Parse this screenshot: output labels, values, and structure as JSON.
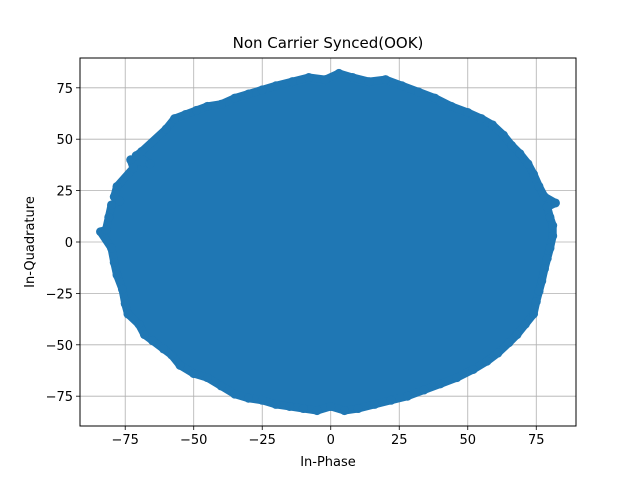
{
  "chart_data": {
    "type": "scatter",
    "title": "Non Carrier Synced(OOK)",
    "xlabel": "In-Phase",
    "ylabel": "In-Quadrature",
    "xlim": [
      -91.5,
      89.5
    ],
    "ylim": [
      -89.5,
      89.5
    ],
    "xticks": [
      -75,
      -50,
      -25,
      0,
      25,
      50,
      75
    ],
    "yticks": [
      -75,
      -50,
      -25,
      0,
      25,
      50,
      75
    ],
    "xtick_labels": [
      "−75",
      "−50",
      "−25",
      "0",
      "25",
      "50",
      "75"
    ],
    "ytick_labels": [
      "−75",
      "−50",
      "−25",
      "0",
      "25",
      "50",
      "75"
    ],
    "grid": true,
    "marker_color": "#1f77b4",
    "series": [
      {
        "points": [
          [
            -84,
            5
          ],
          [
            -82,
            6
          ],
          [
            -81,
            12
          ],
          [
            -80,
            18
          ],
          [
            -79,
            22
          ],
          [
            -78,
            27
          ],
          [
            -77,
            20
          ],
          [
            -80,
            -3
          ],
          [
            -79,
            -10
          ],
          [
            -78,
            -16
          ],
          [
            -76,
            -23
          ],
          [
            -75,
            -30
          ],
          [
            -74,
            -35
          ],
          [
            -73,
            40
          ],
          [
            -71,
            42
          ],
          [
            -69,
            44
          ],
          [
            -66,
            38
          ],
          [
            -72,
            36
          ],
          [
            -70,
            -40
          ],
          [
            -68,
            -45
          ],
          [
            -65,
            -48
          ],
          [
            -61,
            -52
          ],
          [
            -58,
            -55
          ],
          [
            -55,
            -60
          ],
          [
            -60,
            55
          ],
          [
            -57,
            60
          ],
          [
            -53,
            62
          ],
          [
            -49,
            64
          ],
          [
            -45,
            66
          ],
          [
            -40,
            67
          ],
          [
            -50,
            -64
          ],
          [
            -45,
            -66
          ],
          [
            -40,
            -70
          ],
          [
            -35,
            -74
          ],
          [
            -30,
            -76
          ],
          [
            -35,
            70
          ],
          [
            -30,
            72
          ],
          [
            -25,
            74
          ],
          [
            -20,
            76
          ],
          [
            -14,
            78
          ],
          [
            -8,
            80
          ],
          [
            -2,
            79
          ],
          [
            -25,
            -77
          ],
          [
            -20,
            -79
          ],
          [
            -15,
            -80
          ],
          [
            -10,
            -81
          ],
          [
            -5,
            -82
          ],
          [
            0,
            -80
          ],
          [
            3,
            82
          ],
          [
            8,
            80
          ],
          [
            14,
            78
          ],
          [
            20,
            79
          ],
          [
            26,
            76
          ],
          [
            32,
            73
          ],
          [
            38,
            70
          ],
          [
            44,
            66
          ],
          [
            5,
            -82
          ],
          [
            10,
            -81
          ],
          [
            16,
            -79
          ],
          [
            22,
            -77
          ],
          [
            28,
            -75
          ],
          [
            34,
            -72
          ],
          [
            40,
            -69
          ],
          [
            46,
            -66
          ],
          [
            50,
            63
          ],
          [
            55,
            60
          ],
          [
            59,
            57
          ],
          [
            63,
            52
          ],
          [
            66,
            47
          ],
          [
            69,
            43
          ],
          [
            72,
            38
          ],
          [
            74,
            33
          ],
          [
            52,
            -62
          ],
          [
            57,
            -58
          ],
          [
            61,
            -54
          ],
          [
            65,
            -49
          ],
          [
            68,
            -45
          ],
          [
            71,
            -40
          ],
          [
            74,
            -35
          ],
          [
            76,
            27
          ],
          [
            78,
            22
          ],
          [
            79,
            17
          ],
          [
            80,
            12
          ],
          [
            81,
            8
          ],
          [
            81,
            3
          ],
          [
            80,
            -3
          ],
          [
            79,
            -8
          ],
          [
            78,
            -13
          ],
          [
            77,
            -19
          ],
          [
            76,
            -24
          ],
          [
            75,
            -29
          ],
          [
            82,
            19
          ]
        ]
      }
    ]
  }
}
